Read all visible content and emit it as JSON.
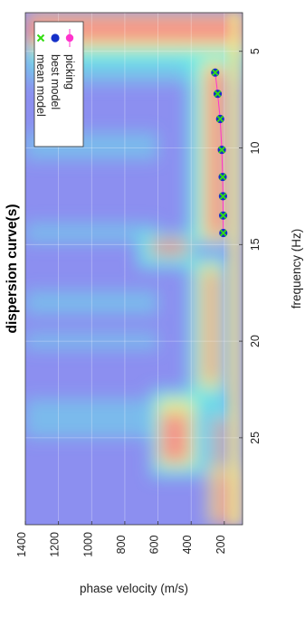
{
  "chart_data": {
    "type": "scatter",
    "title": "dispersion curve(s)",
    "xlabel": "frequency (Hz)",
    "ylabel": "phase velocity (m/s)",
    "xlim": [
      3,
      29.5
    ],
    "ylim": [
      90,
      1400
    ],
    "x_ticks": [
      5,
      10,
      15,
      20,
      25
    ],
    "y_ticks": [
      200,
      400,
      600,
      800,
      1000,
      1200,
      1400
    ],
    "grid": true,
    "legend_position": "top-right",
    "series": [
      {
        "name": "picking",
        "marker": "circle",
        "line": true,
        "color": "#ff33cc",
        "x": [
          6.1,
          7.2,
          8.5,
          10.1,
          11.5,
          12.5,
          13.5,
          14.4
        ],
        "y": [
          255,
          240,
          225,
          215,
          210,
          208,
          207,
          206
        ]
      },
      {
        "name": "best model",
        "marker": "circle",
        "line": false,
        "color": "#1530c8",
        "x": [
          6.1,
          7.2,
          8.5,
          10.1,
          11.5,
          12.5,
          13.5,
          14.4
        ],
        "y": [
          255,
          240,
          225,
          215,
          210,
          208,
          207,
          206
        ]
      },
      {
        "name": "mean model",
        "marker": "x",
        "line": false,
        "color": "#33dd11",
        "x": [
          6.1,
          7.2,
          8.5,
          10.1,
          11.5,
          12.5,
          13.5,
          14.4
        ],
        "y": [
          255,
          240,
          225,
          215,
          210,
          208,
          207,
          206
        ]
      }
    ],
    "background": {
      "kind": "dispersion-image",
      "colors": {
        "low": "#8a90f0",
        "mid": "#66f0e6",
        "warm": "#f6ea85",
        "high": "#f58a8a"
      }
    }
  }
}
